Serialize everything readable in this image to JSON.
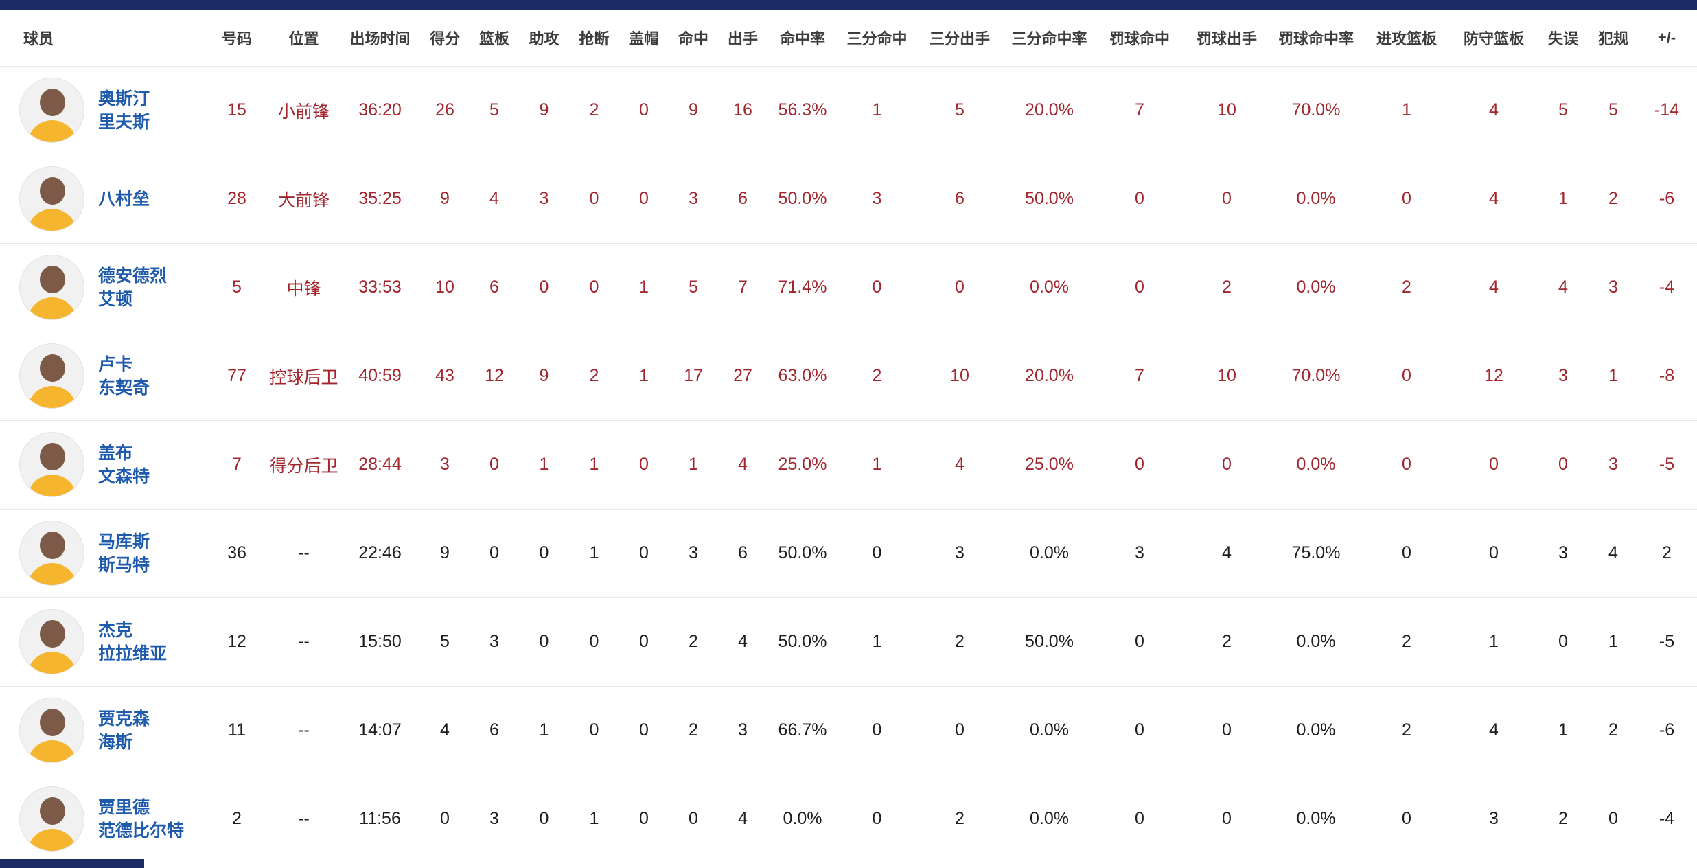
{
  "colors": {
    "navy_bar": "#1c2a66",
    "starter_stat": "#a2262d",
    "bench_stat": "#1d1d1d",
    "name_link": "#1e5bad",
    "jersey_gold": "#f5b52e"
  },
  "table": {
    "columns": [
      "球员",
      "号码",
      "位置",
      "出场时间",
      "得分",
      "篮板",
      "助攻",
      "抢断",
      "盖帽",
      "命中",
      "出手",
      "命中率",
      "三分命中",
      "三分出手",
      "三分命中率",
      "罚球命中",
      "罚球出手",
      "罚球命中率",
      "进攻篮板",
      "防守篮板",
      "失误",
      "犯规",
      "+/-"
    ],
    "players": [
      {
        "name_lines": [
          "奥斯汀",
          "里夫斯"
        ],
        "starter": true,
        "cells": [
          "15",
          "小前锋",
          "36:20",
          "26",
          "5",
          "9",
          "2",
          "0",
          "9",
          "16",
          "56.3%",
          "1",
          "5",
          "20.0%",
          "7",
          "10",
          "70.0%",
          "1",
          "4",
          "5",
          "5",
          "-14"
        ]
      },
      {
        "name_lines": [
          "八村垒"
        ],
        "starter": true,
        "cells": [
          "28",
          "大前锋",
          "35:25",
          "9",
          "4",
          "3",
          "0",
          "0",
          "3",
          "6",
          "50.0%",
          "3",
          "6",
          "50.0%",
          "0",
          "0",
          "0.0%",
          "0",
          "4",
          "1",
          "2",
          "-6"
        ]
      },
      {
        "name_lines": [
          "德安德烈",
          "艾顿"
        ],
        "starter": true,
        "cells": [
          "5",
          "中锋",
          "33:53",
          "10",
          "6",
          "0",
          "0",
          "1",
          "5",
          "7",
          "71.4%",
          "0",
          "0",
          "0.0%",
          "0",
          "2",
          "0.0%",
          "2",
          "4",
          "4",
          "3",
          "-4"
        ]
      },
      {
        "name_lines": [
          "卢卡",
          "东契奇"
        ],
        "starter": true,
        "cells": [
          "77",
          "控球后卫",
          "40:59",
          "43",
          "12",
          "9",
          "2",
          "1",
          "17",
          "27",
          "63.0%",
          "2",
          "10",
          "20.0%",
          "7",
          "10",
          "70.0%",
          "0",
          "12",
          "3",
          "1",
          "-8"
        ]
      },
      {
        "name_lines": [
          "盖布",
          "文森特"
        ],
        "starter": true,
        "cells": [
          "7",
          "得分后卫",
          "28:44",
          "3",
          "0",
          "1",
          "1",
          "0",
          "1",
          "4",
          "25.0%",
          "1",
          "4",
          "25.0%",
          "0",
          "0",
          "0.0%",
          "0",
          "0",
          "0",
          "3",
          "-5"
        ]
      },
      {
        "name_lines": [
          "马库斯",
          "斯马特"
        ],
        "starter": false,
        "cells": [
          "36",
          "--",
          "22:46",
          "9",
          "0",
          "0",
          "1",
          "0",
          "3",
          "6",
          "50.0%",
          "0",
          "3",
          "0.0%",
          "3",
          "4",
          "75.0%",
          "0",
          "0",
          "3",
          "4",
          "2"
        ]
      },
      {
        "name_lines": [
          "杰克",
          "拉拉维亚"
        ],
        "starter": false,
        "cells": [
          "12",
          "--",
          "15:50",
          "5",
          "3",
          "0",
          "0",
          "0",
          "2",
          "4",
          "50.0%",
          "1",
          "2",
          "50.0%",
          "0",
          "2",
          "0.0%",
          "2",
          "1",
          "0",
          "1",
          "-5"
        ]
      },
      {
        "name_lines": [
          "贾克森",
          "海斯"
        ],
        "starter": false,
        "cells": [
          "11",
          "--",
          "14:07",
          "4",
          "6",
          "1",
          "0",
          "0",
          "2",
          "3",
          "66.7%",
          "0",
          "0",
          "0.0%",
          "0",
          "0",
          "0.0%",
          "2",
          "4",
          "1",
          "2",
          "-6"
        ]
      },
      {
        "name_lines": [
          "贾里德",
          "范德比尔特"
        ],
        "starter": false,
        "cells": [
          "2",
          "--",
          "11:56",
          "0",
          "3",
          "0",
          "1",
          "0",
          "0",
          "4",
          "0.0%",
          "0",
          "2",
          "0.0%",
          "0",
          "0",
          "0.0%",
          "0",
          "3",
          "2",
          "0",
          "-4"
        ]
      }
    ]
  }
}
